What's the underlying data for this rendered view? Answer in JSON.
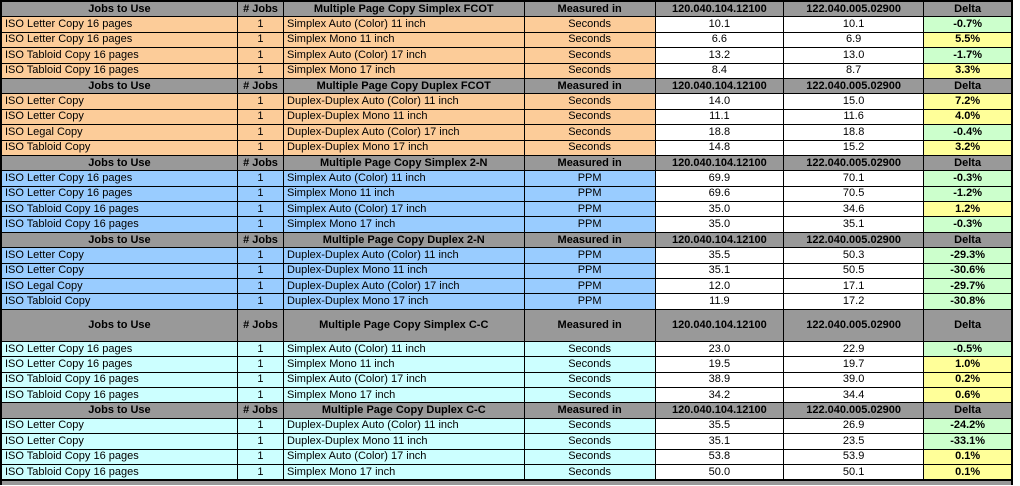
{
  "table": {
    "headers": {
      "jobs_to_use": "Jobs to Use",
      "num_jobs": "# Jobs",
      "measured_in": "Measured in",
      "delta": "Delta"
    },
    "builds": [
      "120.040.104.12100",
      "122.040.005.02900"
    ],
    "delta_colors": {
      "green": "#CCFFCC",
      "yellow": "#FFFF99"
    },
    "header_bg": "#999999",
    "sections": [
      {
        "title": "Multiple Page Copy Simplex FCOT",
        "row_color": "#FCCC99",
        "tall_header": false,
        "rows": [
          {
            "job": "ISO Letter Copy 16 pages",
            "num": "1",
            "process": "Simplex Auto (Color) 11 inch",
            "unit": "Seconds",
            "v1": "10.1",
            "v2": "10.1",
            "delta": "-0.7%",
            "delta_style": "green"
          },
          {
            "job": "ISO Letter Copy 16 pages",
            "num": "1",
            "process": "Simplex Mono 11 inch",
            "unit": "Seconds",
            "v1": "6.6",
            "v2": "6.9",
            "delta": "5.5%",
            "delta_style": "yellow"
          },
          {
            "job": "ISO Tabloid Copy 16 pages",
            "num": "1",
            "process": "Simplex Auto (Color) 17 inch",
            "unit": "Seconds",
            "v1": "13.2",
            "v2": "13.0",
            "delta": "-1.7%",
            "delta_style": "green"
          },
          {
            "job": "ISO Tabloid Copy 16 pages",
            "num": "1",
            "process": "Simplex Mono 17 inch",
            "unit": "Seconds",
            "v1": "8.4",
            "v2": "8.7",
            "delta": "3.3%",
            "delta_style": "yellow"
          }
        ]
      },
      {
        "title": "Multiple Page Copy Duplex FCOT",
        "row_color": "#FCCC99",
        "tall_header": false,
        "rows": [
          {
            "job": "ISO Letter Copy",
            "num": "1",
            "process": "Duplex-Duplex Auto (Color) 11 inch",
            "unit": "Seconds",
            "v1": "14.0",
            "v2": "15.0",
            "delta": "7.2%",
            "delta_style": "yellow"
          },
          {
            "job": "ISO Letter Copy",
            "num": "1",
            "process": "Duplex-Duplex Mono 11 inch",
            "unit": "Seconds",
            "v1": "11.1",
            "v2": "11.6",
            "delta": "4.0%",
            "delta_style": "yellow"
          },
          {
            "job": "ISO Legal Copy",
            "num": "1",
            "process": "Duplex-Duplex Auto (Color) 17 inch",
            "unit": "Seconds",
            "v1": "18.8",
            "v2": "18.8",
            "delta": "-0.4%",
            "delta_style": "green"
          },
          {
            "job": "ISO Tabloid Copy",
            "num": "1",
            "process": "Duplex-Duplex Mono 17 inch",
            "unit": "Seconds",
            "v1": "14.8",
            "v2": "15.2",
            "delta": "3.2%",
            "delta_style": "yellow"
          }
        ]
      },
      {
        "title": "Multiple Page Copy Simplex 2-N",
        "row_color": "#99CCFF",
        "tall_header": false,
        "rows": [
          {
            "job": "ISO Letter Copy 16 pages",
            "num": "1",
            "process": "Simplex Auto (Color) 11 inch",
            "unit": "PPM",
            "v1": "69.9",
            "v2": "70.1",
            "delta": "-0.3%",
            "delta_style": "green"
          },
          {
            "job": "ISO Letter Copy 16 pages",
            "num": "1",
            "process": "Simplex Mono 11 inch",
            "unit": "PPM",
            "v1": "69.6",
            "v2": "70.5",
            "delta": "-1.2%",
            "delta_style": "green"
          },
          {
            "job": "ISO Tabloid Copy 16 pages",
            "num": "1",
            "process": "Simplex Auto (Color) 17 inch",
            "unit": "PPM",
            "v1": "35.0",
            "v2": "34.6",
            "delta": "1.2%",
            "delta_style": "yellow"
          },
          {
            "job": "ISO Tabloid Copy 16 pages",
            "num": "1",
            "process": "Simplex Mono 17 inch",
            "unit": "PPM",
            "v1": "35.0",
            "v2": "35.1",
            "delta": "-0.3%",
            "delta_style": "green"
          }
        ]
      },
      {
        "title": "Multiple Page Copy Duplex 2-N",
        "row_color": "#99CCFF",
        "tall_header": false,
        "rows": [
          {
            "job": "ISO Letter Copy",
            "num": "1",
            "process": "Duplex-Duplex Auto (Color) 11 inch",
            "unit": "PPM",
            "v1": "35.5",
            "v2": "50.3",
            "delta": "-29.3%",
            "delta_style": "green"
          },
          {
            "job": "ISO Letter Copy",
            "num": "1",
            "process": "Duplex-Duplex Mono 11 inch",
            "unit": "PPM",
            "v1": "35.1",
            "v2": "50.5",
            "delta": "-30.6%",
            "delta_style": "green"
          },
          {
            "job": "ISO Legal Copy",
            "num": "1",
            "process": "Duplex-Duplex Auto (Color) 17 inch",
            "unit": "PPM",
            "v1": "12.0",
            "v2": "17.1",
            "delta": "-29.7%",
            "delta_style": "green"
          },
          {
            "job": "ISO Tabloid Copy",
            "num": "1",
            "process": "Duplex-Duplex Mono 17 inch",
            "unit": "PPM",
            "v1": "11.9",
            "v2": "17.2",
            "delta": "-30.8%",
            "delta_style": "green"
          }
        ]
      },
      {
        "title": "Multiple Page Copy Simplex C-C",
        "row_color": "#CCFFFF",
        "tall_header": true,
        "rows": [
          {
            "job": "ISO Letter Copy 16 pages",
            "num": "1",
            "process": "Simplex Auto (Color) 11 inch",
            "unit": "Seconds",
            "v1": "23.0",
            "v2": "22.9",
            "delta": "-0.5%",
            "delta_style": "green"
          },
          {
            "job": "ISO Letter Copy 16 pages",
            "num": "1",
            "process": "Simplex Mono 11 inch",
            "unit": "Seconds",
            "v1": "19.5",
            "v2": "19.7",
            "delta": "1.0%",
            "delta_style": "yellow"
          },
          {
            "job": "ISO Tabloid Copy 16 pages",
            "num": "1",
            "process": "Simplex Auto (Color) 17 inch",
            "unit": "Seconds",
            "v1": "38.9",
            "v2": "39.0",
            "delta": "0.2%",
            "delta_style": "yellow"
          },
          {
            "job": "ISO Tabloid Copy 16 pages",
            "num": "1",
            "process": "Simplex Mono 17 inch",
            "unit": "Seconds",
            "v1": "34.2",
            "v2": "34.4",
            "delta": "0.6%",
            "delta_style": "yellow"
          }
        ]
      },
      {
        "title": "Multiple Page Copy Duplex C-C",
        "row_color": "#CCFFFF",
        "tall_header": false,
        "rows": [
          {
            "job": "ISO Letter Copy",
            "num": "1",
            "process": "Duplex-Duplex Auto (Color) 11 inch",
            "unit": "Seconds",
            "v1": "35.5",
            "v2": "26.9",
            "delta": "-24.2%",
            "delta_style": "green"
          },
          {
            "job": "ISO Letter Copy",
            "num": "1",
            "process": "Duplex-Duplex Mono 11 inch",
            "unit": "Seconds",
            "v1": "35.1",
            "v2": "23.5",
            "delta": "-33.1%",
            "delta_style": "green"
          },
          {
            "job": "ISO Tabloid Copy 16 pages",
            "num": "1",
            "process": "Simplex Auto (Color) 17 inch",
            "unit": "Seconds",
            "v1": "53.8",
            "v2": "53.9",
            "delta": "0.1%",
            "delta_style": "yellow"
          },
          {
            "job": "ISO Tabloid Copy 16 pages",
            "num": "1",
            "process": "Simplex Mono 17 inch",
            "unit": "Seconds",
            "v1": "50.0",
            "v2": "50.1",
            "delta": "0.1%",
            "delta_style": "yellow"
          }
        ]
      }
    ]
  }
}
